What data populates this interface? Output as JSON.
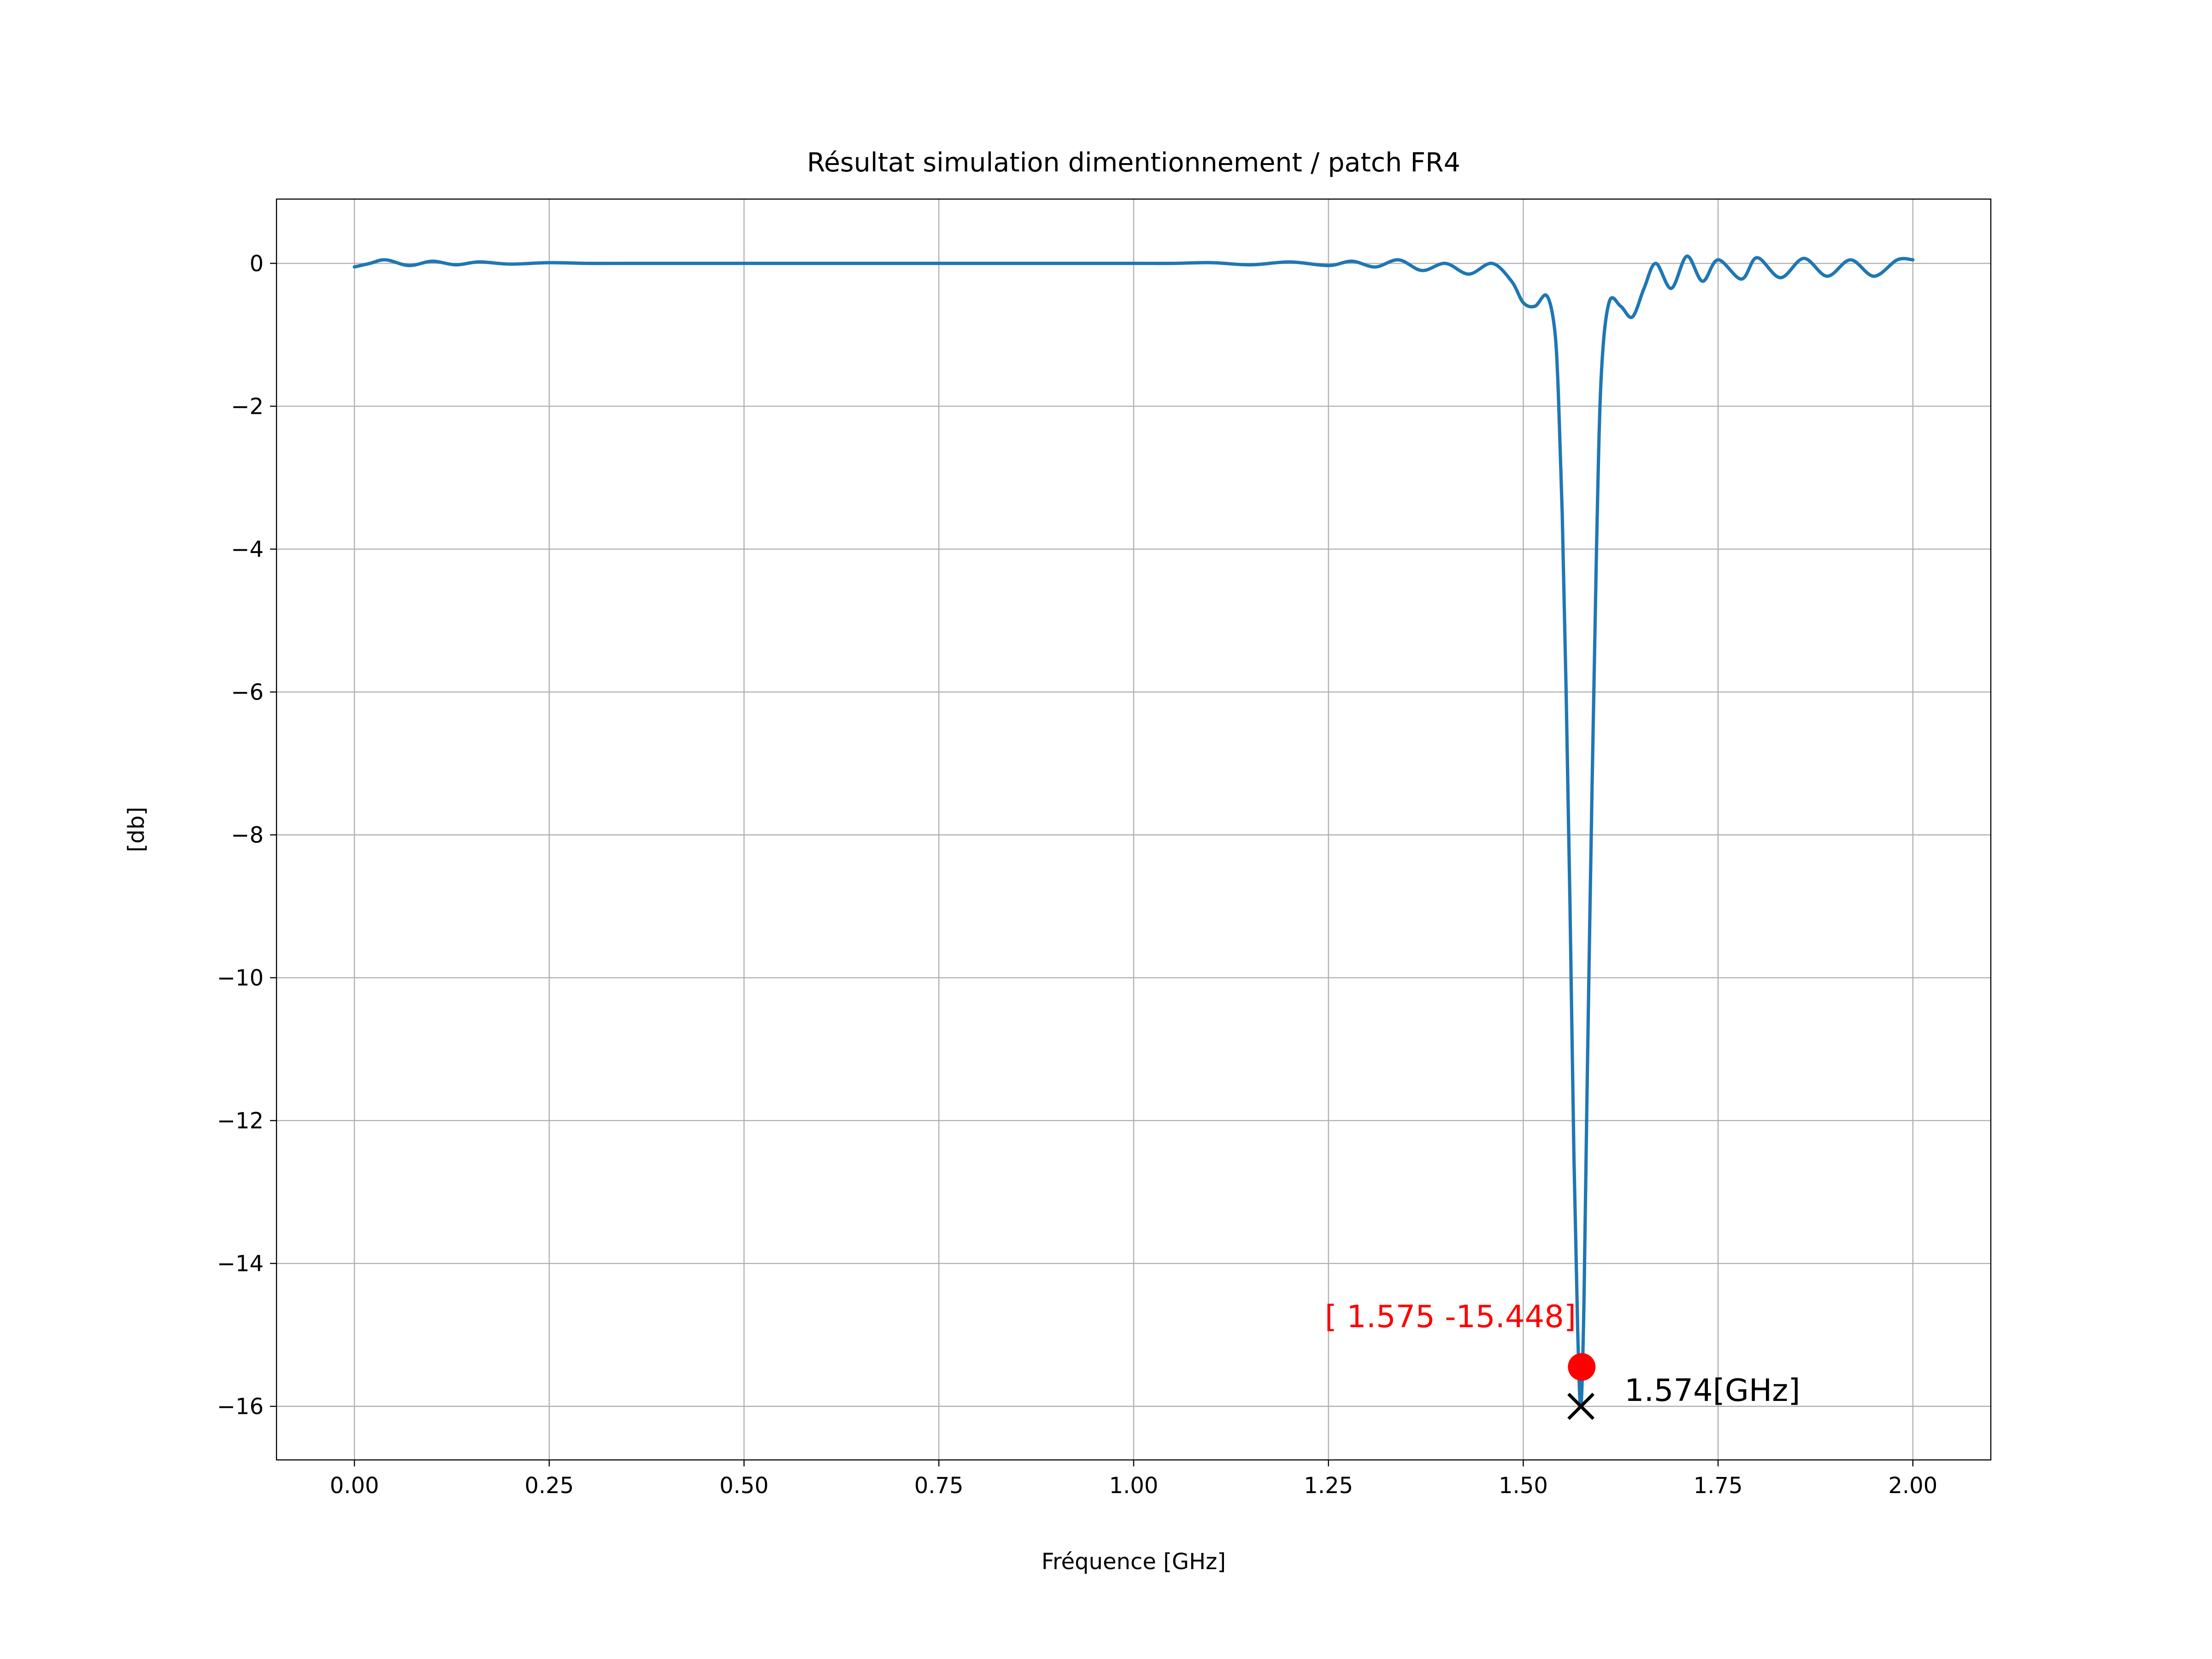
{
  "chart_data": {
    "type": "line",
    "title": "Résultat simulation dimentionnement / patch FR4",
    "xlabel": "Fréquence [GHz]",
    "ylabel": "[db]",
    "xlim": [
      -0.1,
      2.1
    ],
    "ylim": [
      -16.75,
      0.9
    ],
    "grid": true,
    "xticks": [
      0.0,
      0.25,
      0.5,
      0.75,
      1.0,
      1.25,
      1.5,
      1.75,
      2.0
    ],
    "xtick_labels": [
      "0.00",
      "0.25",
      "0.50",
      "0.75",
      "1.00",
      "1.25",
      "1.50",
      "1.75",
      "2.00"
    ],
    "yticks": [
      0,
      -2,
      -4,
      -6,
      -8,
      -10,
      -12,
      -14,
      -16
    ],
    "ytick_labels": [
      "0",
      "−2",
      "−4",
      "−6",
      "−8",
      "−10",
      "−12",
      "−14",
      "−16"
    ],
    "series": [
      {
        "color": "#1f77b4",
        "x": [
          0.0,
          0.02,
          0.04,
          0.07,
          0.1,
          0.13,
          0.16,
          0.2,
          0.25,
          0.3,
          0.35,
          0.4,
          0.5,
          0.6,
          0.7,
          0.8,
          0.9,
          1.0,
          1.05,
          1.1,
          1.15,
          1.2,
          1.25,
          1.28,
          1.31,
          1.34,
          1.37,
          1.4,
          1.43,
          1.46,
          1.485,
          1.5,
          1.515,
          1.53,
          1.54,
          1.545,
          1.55,
          1.555,
          1.56,
          1.565,
          1.57,
          1.574,
          1.578,
          1.582,
          1.588,
          1.594,
          1.6,
          1.61,
          1.625,
          1.64,
          1.655,
          1.67,
          1.69,
          1.71,
          1.73,
          1.75,
          1.78,
          1.8,
          1.83,
          1.86,
          1.89,
          1.92,
          1.95,
          1.98,
          2.0
        ],
        "y": [
          -0.05,
          0.0,
          0.05,
          -0.03,
          0.03,
          -0.02,
          0.02,
          -0.01,
          0.01,
          0.0,
          0.0,
          0.0,
          0.0,
          0.0,
          0.0,
          0.0,
          0.0,
          0.0,
          0.0,
          0.01,
          -0.02,
          0.02,
          -0.03,
          0.03,
          -0.05,
          0.05,
          -0.1,
          0.0,
          -0.15,
          0.0,
          -0.25,
          -0.55,
          -0.6,
          -0.45,
          -0.9,
          -1.8,
          -3.5,
          -6.0,
          -9.0,
          -12.5,
          -15.0,
          -16.0,
          -14.5,
          -11.5,
          -7.5,
          -4.0,
          -1.6,
          -0.55,
          -0.6,
          -0.75,
          -0.35,
          0.0,
          -0.35,
          0.1,
          -0.25,
          0.05,
          -0.22,
          0.08,
          -0.2,
          0.07,
          -0.18,
          0.05,
          -0.18,
          0.05,
          0.05
        ]
      }
    ],
    "annotations": [
      {
        "type": "point",
        "marker": "circle",
        "x": 1.575,
        "y": -15.448,
        "color": "#ff0000",
        "label": "[  1.575 -15.448]"
      },
      {
        "type": "point",
        "marker": "x",
        "x": 1.574,
        "y": -16.0,
        "color": "#000000",
        "label": "1.574[GHz]"
      }
    ]
  }
}
